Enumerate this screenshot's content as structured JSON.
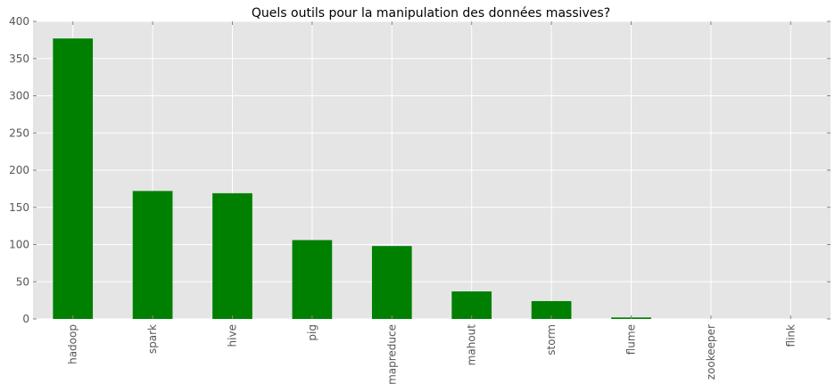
{
  "chart_data": {
    "type": "bar",
    "title": "Quels outils pour la manipulation des données massives?",
    "xlabel": "",
    "ylabel": "",
    "categories": [
      "hadoop",
      "spark",
      "hive",
      "pig",
      "mapreduce",
      "mahout",
      "storm",
      "flume",
      "zookeeper",
      "flink"
    ],
    "values": [
      377,
      172,
      169,
      106,
      98,
      37,
      24,
      2,
      0,
      0
    ],
    "ylim": [
      0,
      400
    ],
    "yticks": [
      0,
      50,
      100,
      150,
      200,
      250,
      300,
      350,
      400
    ],
    "grid": true,
    "legend": "none",
    "colors": {
      "bar": "#008000",
      "plot_background": "#e5e5e5",
      "grid": "#ffffff",
      "tick_label": "#555555"
    }
  }
}
